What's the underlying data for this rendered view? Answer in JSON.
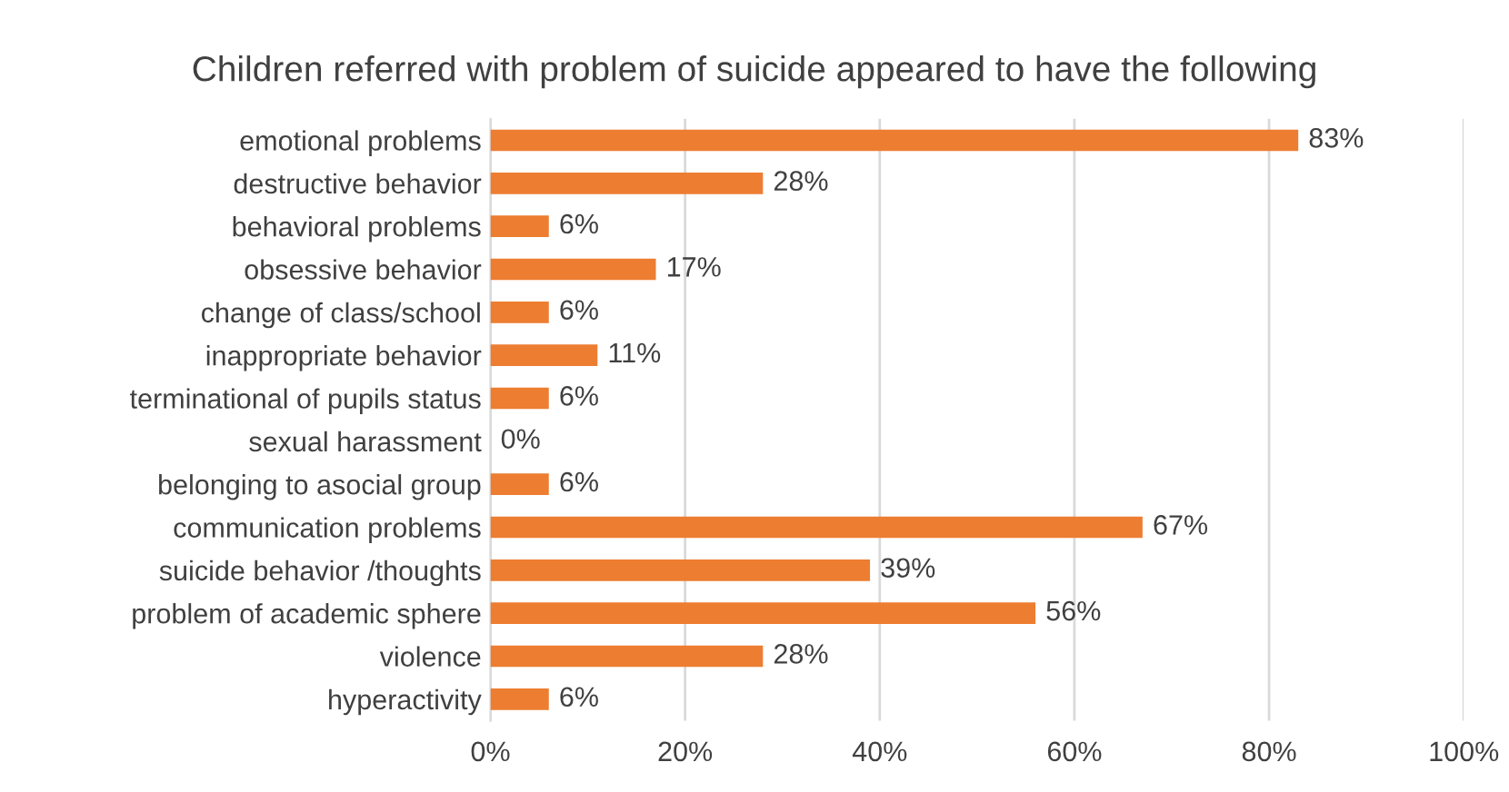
{
  "chart_data": {
    "type": "bar",
    "orientation": "horizontal",
    "title": "Children referred with problem of suicide appeared to have the following",
    "categories": [
      "emotional problems",
      "destructive behavior",
      "behavioral problems",
      "obsessive behavior",
      "change of class/school",
      "inappropriate behavior",
      "terminational of pupils status",
      "sexual harassment",
      "belonging to asocial group",
      "communication problems",
      "suicide behavior /thoughts",
      "problem of academic sphere",
      "violence",
      "hyperactivity"
    ],
    "values": [
      83,
      28,
      6,
      17,
      6,
      11,
      6,
      0,
      6,
      67,
      39,
      56,
      28,
      6
    ],
    "value_labels": [
      "83%",
      "28%",
      "6%",
      "17%",
      "6%",
      "11%",
      "6%",
      "0%",
      "6%",
      "67%",
      "39%",
      "56%",
      "28%",
      "6%"
    ],
    "color": "#ed7d31",
    "xlim": [
      0,
      100
    ],
    "xticks": [
      {
        "value": 0,
        "label": "0%"
      },
      {
        "value": 20,
        "label": "20%"
      },
      {
        "value": 40,
        "label": "40%"
      },
      {
        "value": 60,
        "label": "60%"
      },
      {
        "value": 80,
        "label": "80%"
      },
      {
        "value": 100,
        "label": "100%"
      }
    ],
    "grid": "x"
  }
}
